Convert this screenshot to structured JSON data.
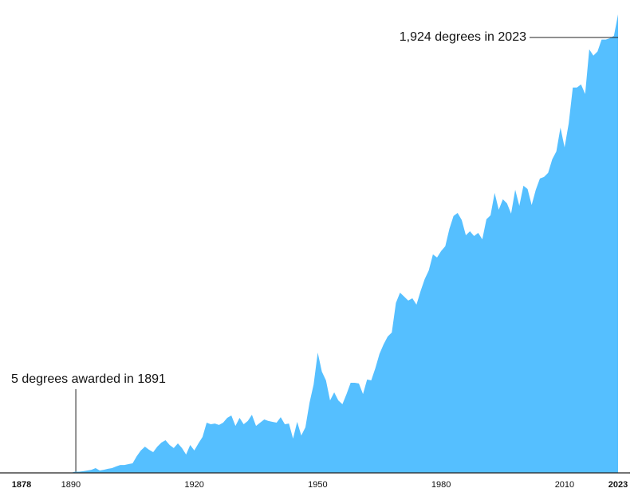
{
  "chart_data": {
    "type": "area",
    "color": "#55bfff",
    "x": [
      1878,
      1879,
      1880,
      1881,
      1882,
      1883,
      1884,
      1885,
      1886,
      1887,
      1888,
      1889,
      1890,
      1891,
      1892,
      1893,
      1894,
      1895,
      1896,
      1897,
      1898,
      1899,
      1900,
      1901,
      1902,
      1903,
      1904,
      1905,
      1906,
      1907,
      1908,
      1909,
      1910,
      1911,
      1912,
      1913,
      1914,
      1915,
      1916,
      1917,
      1918,
      1919,
      1920,
      1921,
      1922,
      1923,
      1924,
      1925,
      1926,
      1927,
      1928,
      1929,
      1930,
      1931,
      1932,
      1933,
      1934,
      1935,
      1936,
      1937,
      1938,
      1939,
      1940,
      1941,
      1942,
      1943,
      1944,
      1945,
      1946,
      1947,
      1948,
      1949,
      1950,
      1951,
      1952,
      1953,
      1954,
      1955,
      1956,
      1957,
      1958,
      1959,
      1960,
      1961,
      1962,
      1963,
      1964,
      1965,
      1966,
      1967,
      1968,
      1969,
      1970,
      1971,
      1972,
      1973,
      1974,
      1975,
      1976,
      1977,
      1978,
      1979,
      1980,
      1981,
      1982,
      1983,
      1984,
      1985,
      1986,
      1987,
      1988,
      1989,
      1990,
      1991,
      1992,
      1993,
      1994,
      1995,
      1996,
      1997,
      1998,
      1999,
      2000,
      2001,
      2002,
      2003,
      2004,
      2005,
      2006,
      2007,
      2008,
      2009,
      2010,
      2011,
      2012,
      2013,
      2014,
      2015,
      2016,
      2017,
      2018,
      2019,
      2020,
      2021,
      2022,
      2023
    ],
    "values": [
      0,
      0,
      0,
      0,
      0,
      0,
      0,
      0,
      0,
      0,
      0,
      0,
      0,
      5,
      5,
      7,
      10,
      13,
      20,
      10,
      13,
      17,
      20,
      27,
      33,
      33,
      37,
      40,
      70,
      94,
      110,
      97,
      87,
      110,
      127,
      137,
      117,
      104,
      124,
      104,
      77,
      117,
      94,
      124,
      151,
      211,
      204,
      207,
      201,
      211,
      231,
      241,
      197,
      231,
      204,
      218,
      244,
      197,
      211,
      224,
      218,
      214,
      211,
      234,
      204,
      207,
      144,
      214,
      157,
      191,
      294,
      371,
      505,
      425,
      388,
      304,
      338,
      304,
      288,
      331,
      378,
      378,
      375,
      331,
      392,
      388,
      439,
      499,
      539,
      572,
      589,
      713,
      756,
      740,
      723,
      733,
      706,
      763,
      813,
      850,
      917,
      904,
      931,
      951,
      1024,
      1078,
      1091,
      1061,
      997,
      1014,
      994,
      1007,
      980,
      1064,
      1081,
      1175,
      1104,
      1148,
      1131,
      1088,
      1188,
      1121,
      1205,
      1191,
      1124,
      1188,
      1235,
      1242,
      1259,
      1316,
      1349,
      1449,
      1366,
      1466,
      1617,
      1617,
      1630,
      1590,
      1777,
      1751,
      1768,
      1818,
      1818,
      1824,
      1834,
      1924
    ],
    "xlim": [
      1878,
      2023
    ],
    "ylim": [
      0,
      1924
    ],
    "xticks": [
      1878,
      1890,
      1920,
      1950,
      1980,
      2010,
      2023
    ],
    "annotations": [
      {
        "text": "5 degrees awarded in 1891",
        "x": 1891,
        "y": 5
      },
      {
        "text": "1,924 degrees in 2023",
        "x": 2023,
        "y": 1924
      }
    ]
  }
}
